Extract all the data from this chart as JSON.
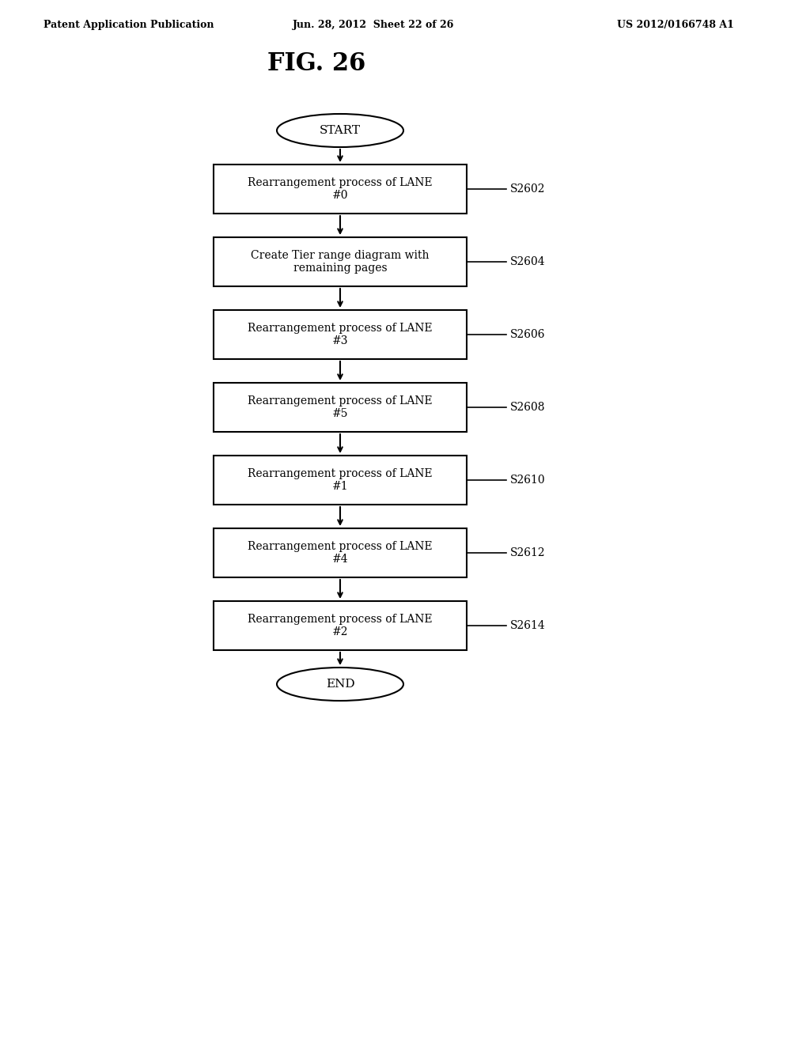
{
  "title": "FIG. 26",
  "header_left": "Patent Application Publication",
  "header_mid": "Jun. 28, 2012  Sheet 22 of 26",
  "header_right": "US 2012/0166748 A1",
  "start_label": "START",
  "end_label": "END",
  "boxes": [
    {
      "label": "Rearrangement process of LANE\n#0",
      "step": "S2602"
    },
    {
      "label": "Create Tier range diagram with\nremaining pages",
      "step": "S2604"
    },
    {
      "label": "Rearrangement process of LANE\n#3",
      "step": "S2606"
    },
    {
      "label": "Rearrangement process of LANE\n#5",
      "step": "S2608"
    },
    {
      "label": "Rearrangement process of LANE\n#1",
      "step": "S2610"
    },
    {
      "label": "Rearrangement process of LANE\n#4",
      "step": "S2612"
    },
    {
      "label": "Rearrangement process of LANE\n#2",
      "step": "S2614"
    }
  ],
  "bg_color": "#ffffff",
  "box_edge_color": "#000000",
  "text_color": "#000000",
  "arrow_color": "#000000"
}
